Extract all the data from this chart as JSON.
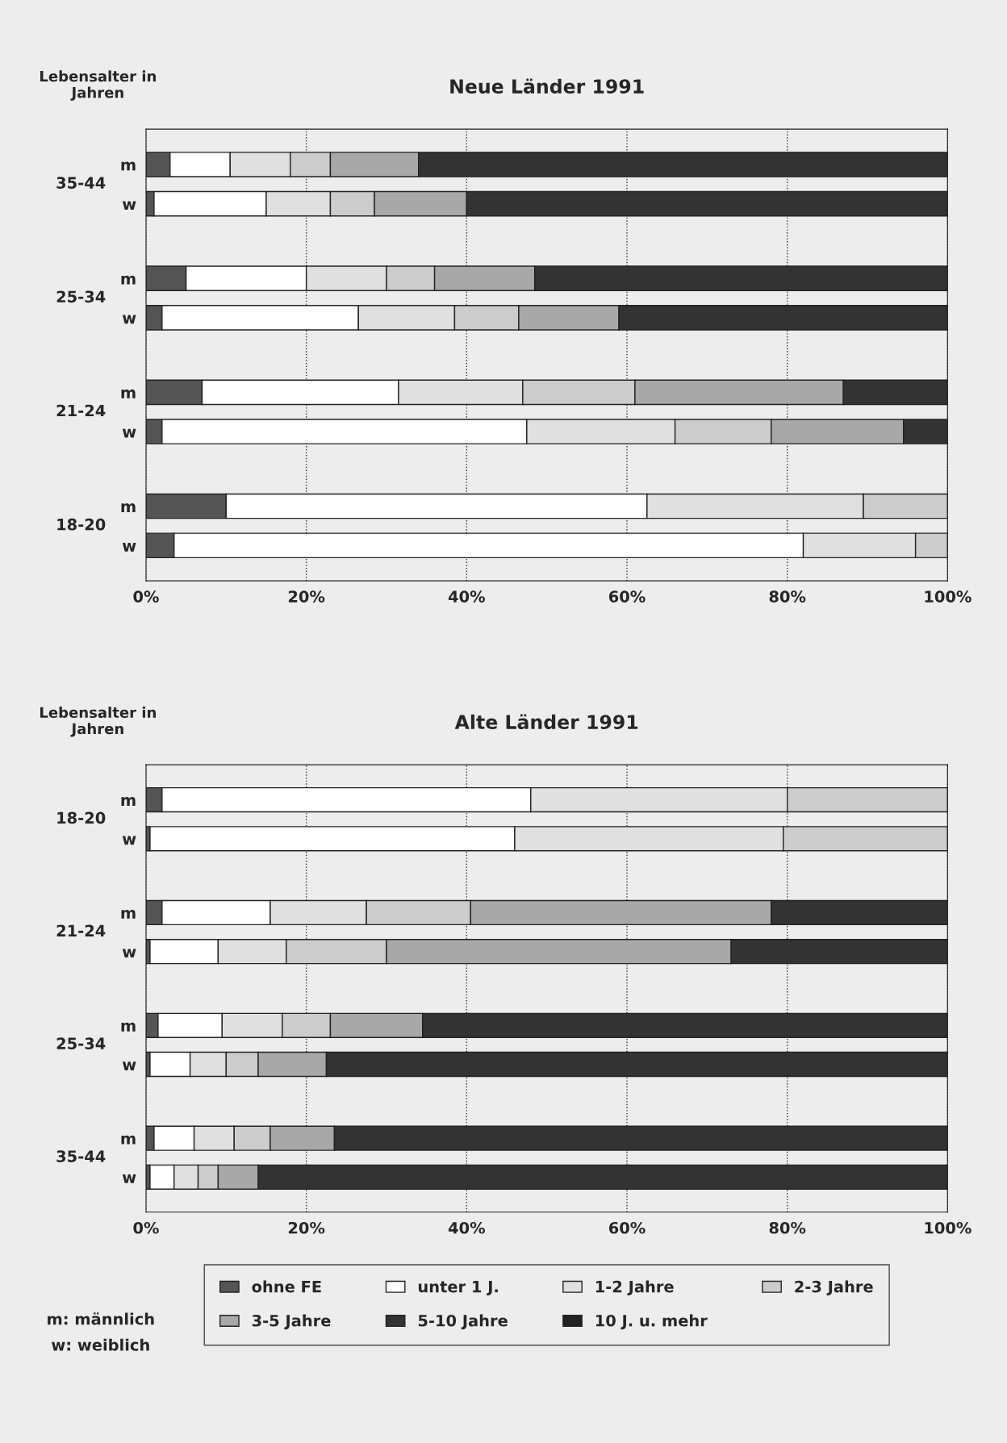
{
  "chart_data": [
    {
      "type": "bar",
      "orientation": "horizontal",
      "stacked": true,
      "title": "Neue Länder 1991",
      "ylabel": "Lebensalter in\nJahren",
      "categories": [
        "m",
        "w",
        "m",
        "w",
        "m",
        "w",
        "m",
        "w"
      ],
      "annotations": [
        "35-44",
        "25-34",
        "21-24",
        "18-20"
      ],
      "xlim": [
        0,
        100
      ],
      "xticks": [
        {
          "value": 0,
          "label": "0%"
        },
        {
          "value": 20,
          "label": "20%"
        },
        {
          "value": 40,
          "label": "40%"
        },
        {
          "value": 60,
          "label": "60%"
        },
        {
          "value": 80,
          "label": "80%"
        },
        {
          "value": 100,
          "label": "100%"
        }
      ],
      "grid": "x",
      "series": [
        {
          "color": "#555555",
          "values": [
            3,
            1,
            5,
            2,
            7,
            2,
            10,
            3.5
          ]
        },
        {
          "color": "#ffffff",
          "values": [
            7.5,
            14,
            15,
            24.5,
            24.5,
            45.5,
            52.5,
            78.5
          ]
        },
        {
          "color": "#e0e0e0",
          "values": [
            7.5,
            8,
            10,
            12,
            15.5,
            18.5,
            27,
            14
          ]
        },
        {
          "color": "#cccccc",
          "values": [
            5,
            5.5,
            6,
            8,
            14,
            12,
            10.5,
            4
          ]
        },
        {
          "color": "#a8a8a8",
          "values": [
            11,
            11.5,
            12.5,
            12.5,
            26,
            16.5,
            null,
            null
          ]
        },
        {
          "color": "#333333",
          "values": [
            66,
            60,
            51.5,
            41,
            13,
            5.5,
            null,
            null
          ]
        }
      ]
    },
    {
      "type": "bar",
      "orientation": "horizontal",
      "stacked": true,
      "title": "Alte Länder 1991",
      "ylabel": "Lebensalter in\nJahren",
      "categories": [
        "m",
        "w",
        "m",
        "w",
        "m",
        "w",
        "m",
        "w"
      ],
      "annotations": [
        "18-20",
        "21-24",
        "25-34",
        "35-44",
        "m: männlich",
        "w: weiblich"
      ],
      "xlim": [
        0,
        100
      ],
      "xticks": [
        {
          "value": 0,
          "label": "0%"
        },
        {
          "value": 20,
          "label": "20%"
        },
        {
          "value": 40,
          "label": "40%"
        },
        {
          "value": 60,
          "label": "60%"
        },
        {
          "value": 80,
          "label": "80%"
        },
        {
          "value": 100,
          "label": "100%"
        }
      ],
      "grid": "x",
      "legend": "bottom",
      "series": [
        {
          "name": "ohne FE",
          "color": "#555555",
          "values": [
            2,
            0.5,
            2,
            0.5,
            1.5,
            0.5,
            1,
            0.5
          ]
        },
        {
          "name": "unter 1 J.",
          "color": "#ffffff",
          "values": [
            46,
            45.5,
            13.5,
            8.5,
            8,
            5,
            5,
            3
          ]
        },
        {
          "name": "1-2 Jahre",
          "color": "#e0e0e0",
          "values": [
            32,
            33.5,
            12,
            8.5,
            7.5,
            4.5,
            5,
            3
          ]
        },
        {
          "name": "2-3 Jahre",
          "color": "#cccccc",
          "values": [
            20,
            20.5,
            13,
            12.5,
            6,
            4,
            4.5,
            2.5
          ]
        },
        {
          "name": "3-5 Jahre",
          "color": "#a8a8a8",
          "values": [
            null,
            null,
            37.5,
            43,
            11.5,
            8.5,
            8,
            5
          ]
        },
        {
          "name": "5-10 Jahre",
          "color": "#333333",
          "values": [
            null,
            null,
            22,
            27,
            65.5,
            77.5,
            76.5,
            86
          ]
        },
        {
          "name": "10 J. u. mehr",
          "color": "#222222",
          "values": [
            null,
            null,
            null,
            null,
            null,
            null,
            null,
            null
          ]
        }
      ]
    }
  ]
}
